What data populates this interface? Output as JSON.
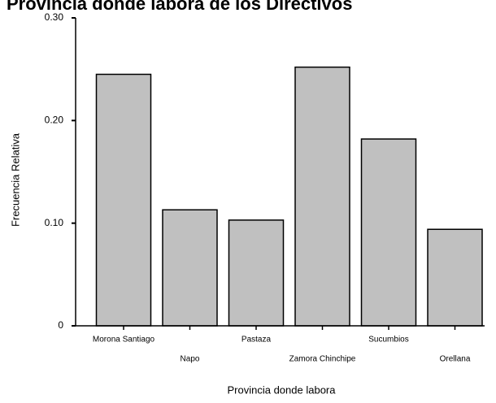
{
  "chart_data": {
    "type": "bar",
    "title": "Provincia donde labora de los Directivos",
    "xlabel": "Provincia donde labora",
    "ylabel": "Frecuencia Relativa",
    "categories": [
      "Morona Santiago",
      "Napo",
      "Pastaza",
      "Zamora Chinchipe",
      "Sucumbios",
      "Orellana"
    ],
    "values": [
      0.245,
      0.113,
      0.103,
      0.252,
      0.182,
      0.094
    ],
    "ylim": [
      0,
      0.3
    ],
    "y_ticks": [
      0,
      0.1,
      0.2,
      0.3
    ],
    "y_tick_labels": [
      "0",
      "0.10",
      "0.20",
      "0.30"
    ],
    "grid": false,
    "legend": "none",
    "colors": {
      "bar_fill": "#c0c0c0",
      "bar_stroke": "#000000",
      "axis": "#000000",
      "background": "#ffffff"
    }
  }
}
